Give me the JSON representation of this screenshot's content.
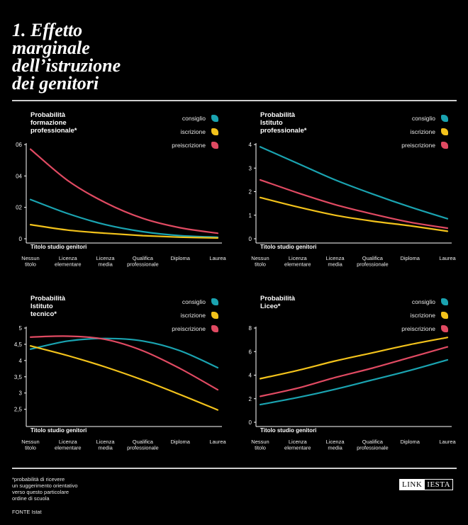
{
  "title": "1. Effetto\nmarginale\ndell’istruzione\ndei genitori",
  "footnote": "*probabilità di ricevere\nun suggerimento orientativo\nverso questo particolare\nordine di scuola",
  "source": "FONTE Istat",
  "logo": {
    "part1": "LINK",
    "part2": "IESTA"
  },
  "colors": {
    "consiglio": "#1aa3b0",
    "iscrizione": "#f2c21b",
    "preiscrizione": "#e04a62",
    "background": "#000000"
  },
  "legend": [
    "consiglio",
    "iscrizione",
    "preiscrizione"
  ],
  "chart_data": [
    {
      "type": "line",
      "title": "Probabilità\nformazione\nprofessionale*",
      "xlabel": "Titolo studio genitori",
      "categories": [
        "Nessun\ntitolo",
        "Licenza\nelementare",
        "Licenza\nmedia",
        "Qualifica\nprofessionale",
        "Diploma",
        "Laurea"
      ],
      "ylim": [
        0,
        6
      ],
      "yticks": [
        0,
        2,
        4,
        6
      ],
      "ytick_labels": [
        "0",
        "02",
        "04",
        "06"
      ],
      "series": [
        {
          "name": "consiglio",
          "values": [
            2.5,
            1.6,
            0.9,
            0.45,
            0.2,
            0.1
          ]
        },
        {
          "name": "iscrizione",
          "values": [
            0.9,
            0.55,
            0.35,
            0.2,
            0.1,
            0.05
          ]
        },
        {
          "name": "preiscrizione",
          "values": [
            5.7,
            3.7,
            2.3,
            1.3,
            0.7,
            0.35
          ]
        }
      ]
    },
    {
      "type": "line",
      "title": "Probabilità\nIstituto\nprofessionale*",
      "xlabel": "Titolo studio genitori",
      "categories": [
        "Nessun\ntitolo",
        "Licenza\nelementare",
        "Licenza\nmedia",
        "Qualifica\nprofessionale",
        "Diploma",
        "Laurea"
      ],
      "ylim": [
        0,
        4
      ],
      "yticks": [
        0,
        1,
        2,
        3,
        4
      ],
      "ytick_labels": [
        "0",
        "1",
        "2",
        "3",
        "4"
      ],
      "series": [
        {
          "name": "consiglio",
          "values": [
            3.9,
            3.2,
            2.5,
            1.9,
            1.35,
            0.85
          ]
        },
        {
          "name": "iscrizione",
          "values": [
            1.75,
            1.35,
            1.0,
            0.75,
            0.55,
            0.32
          ]
        },
        {
          "name": "preiscrizione",
          "values": [
            2.5,
            1.95,
            1.45,
            1.05,
            0.7,
            0.45
          ]
        }
      ]
    },
    {
      "type": "line",
      "title": "Probabilità\nIstituto\ntecnico*",
      "xlabel": "Titolo studio genitori",
      "categories": [
        "Nessun\ntitolo",
        "Licenza\nelementare",
        "Licenza\nmedia",
        "Qualifica\nprofessionale",
        "Diploma",
        "Laurea"
      ],
      "ylim": [
        2.1,
        5
      ],
      "yticks": [
        2.5,
        3,
        3.5,
        4,
        4.5,
        5
      ],
      "ytick_labels": [
        "2,5",
        "3",
        "3,5",
        "4",
        "4,5",
        "5"
      ],
      "series": [
        {
          "name": "consiglio",
          "values": [
            4.35,
            4.6,
            4.68,
            4.6,
            4.3,
            3.78
          ]
        },
        {
          "name": "iscrizione",
          "values": [
            4.45,
            4.15,
            3.8,
            3.4,
            2.95,
            2.48
          ]
        },
        {
          "name": "preiscrizione",
          "values": [
            4.72,
            4.75,
            4.65,
            4.3,
            3.75,
            3.1
          ]
        }
      ]
    },
    {
      "type": "line",
      "title": "Probabilità\nLiceo*",
      "xlabel": "Titolo studio genitori",
      "categories": [
        "Nessun\ntitolo",
        "Licenza\nelementare",
        "Licenza\nmedia",
        "Qualifica\nprofessionale",
        "Diploma",
        "Laurea"
      ],
      "ylim": [
        0,
        8
      ],
      "yticks": [
        0,
        2,
        4,
        6,
        8
      ],
      "ytick_labels": [
        "0",
        "2",
        "4",
        "6",
        "8"
      ],
      "series": [
        {
          "name": "consiglio",
          "values": [
            1.5,
            2.1,
            2.8,
            3.6,
            4.4,
            5.3
          ]
        },
        {
          "name": "iscrizione",
          "values": [
            3.7,
            4.4,
            5.2,
            5.9,
            6.6,
            7.2
          ]
        },
        {
          "name": "preiscrizione",
          "values": [
            2.2,
            2.9,
            3.8,
            4.6,
            5.5,
            6.4
          ]
        }
      ]
    }
  ]
}
